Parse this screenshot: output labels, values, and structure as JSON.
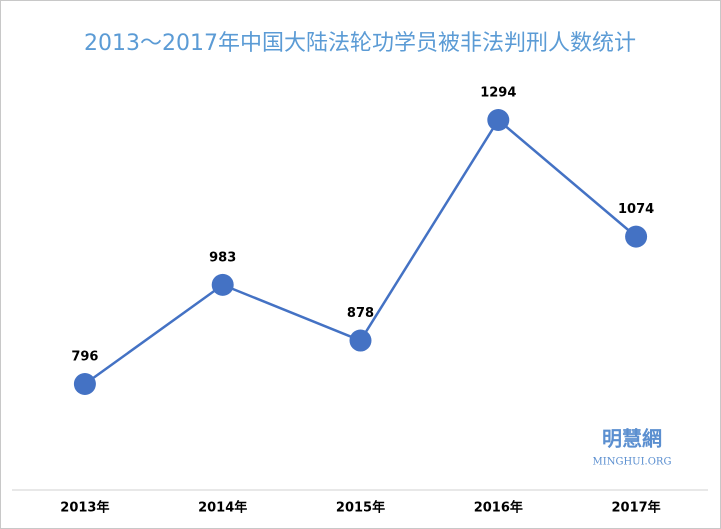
{
  "chart_data": {
    "type": "line",
    "title": "2013～2017年中国大陆法轮功学员被非法判刑人数统计",
    "categories": [
      "2013年",
      "2014年",
      "2015年",
      "2016年",
      "2017年"
    ],
    "values": [
      796,
      983,
      878,
      1294,
      1074
    ],
    "color": "#4472c4"
  },
  "watermark": {
    "name": "明慧網",
    "site": "MINGHUI.ORG"
  }
}
